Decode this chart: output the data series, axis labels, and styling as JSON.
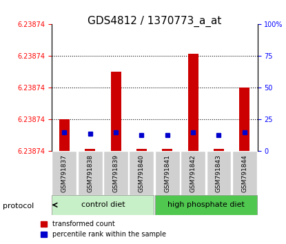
{
  "title": "GDS4812 / 1370773_a_at",
  "samples": [
    "GSM791837",
    "GSM791838",
    "GSM791839",
    "GSM791840",
    "GSM791841",
    "GSM791842",
    "GSM791843",
    "GSM791844"
  ],
  "red_bar_heights": [
    25,
    2,
    63,
    2,
    2,
    77,
    2,
    50
  ],
  "blue_dot_pcts": [
    15,
    14,
    15,
    13,
    13,
    15,
    13,
    15
  ],
  "ylim_left": [
    0,
    100
  ],
  "ylim_right": [
    0,
    100
  ],
  "ytick_labels_left": [
    "6.23874",
    "6.23874",
    "6.23874",
    "6.23874",
    "6.23874"
  ],
  "ytick_positions": [
    0,
    25,
    50,
    75,
    100
  ],
  "ytick_labels_right": [
    "0",
    "25",
    "50",
    "75",
    "100%"
  ],
  "group1_label": "control diet",
  "group2_label": "high phosphate diet",
  "group1_indices": [
    0,
    1,
    2,
    3
  ],
  "group2_indices": [
    4,
    5,
    6,
    7
  ],
  "group1_color": "#c8f0c8",
  "group2_color": "#50c850",
  "protocol_label": "protocol",
  "legend_red": "transformed count",
  "legend_blue": "percentile rank within the sample",
  "bar_color": "#cc0000",
  "dot_color": "#0000cc",
  "background_color": "#f0f0f0",
  "plot_bg": "#ffffff",
  "grid_color": "#000000",
  "title_fontsize": 11,
  "tick_fontsize": 8,
  "label_fontsize": 9
}
